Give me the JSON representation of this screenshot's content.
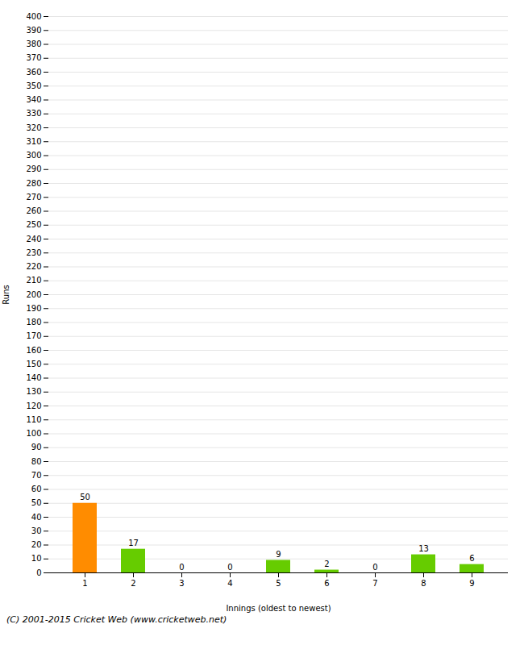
{
  "chart_data": {
    "type": "bar",
    "xlabel": "Innings (oldest to newest)",
    "ylabel": "Runs",
    "categories": [
      "1",
      "2",
      "3",
      "4",
      "5",
      "6",
      "7",
      "8",
      "9"
    ],
    "values": [
      50,
      17,
      0,
      0,
      9,
      2,
      0,
      13,
      6
    ],
    "colors": [
      "#ff8c00",
      "#66cc00",
      "#66cc00",
      "#66cc00",
      "#66cc00",
      "#66cc00",
      "#66cc00",
      "#66cc00",
      "#66cc00"
    ],
    "ylim": [
      0,
      400
    ],
    "yticks": [
      0,
      10,
      20,
      30,
      40,
      50,
      60,
      70,
      80,
      90,
      100,
      110,
      120,
      130,
      140,
      150,
      160,
      170,
      180,
      190,
      200,
      210,
      220,
      230,
      240,
      250,
      260,
      270,
      280,
      290,
      300,
      310,
      320,
      330,
      340,
      350,
      360,
      370,
      380,
      390,
      400
    ],
    "grid": true,
    "data_labels": true,
    "caption": "(C) 2001-2015 Cricket Web (www.cricketweb.net)"
  }
}
